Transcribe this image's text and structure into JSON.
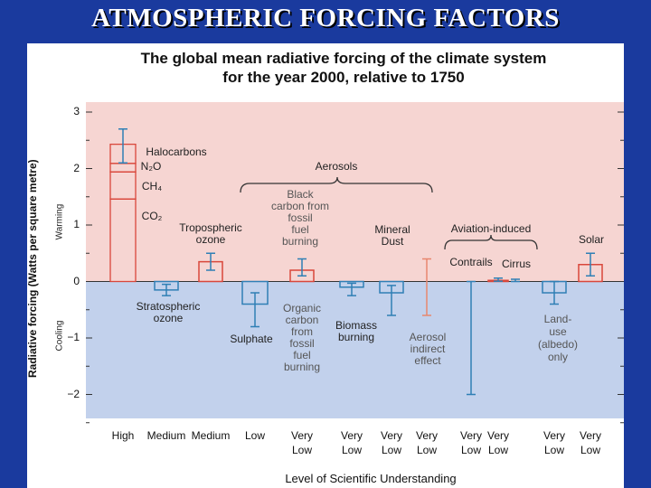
{
  "slide": {
    "title": "ATMOSPHERIC FORCING FACTORS"
  },
  "chart_data": {
    "type": "bar",
    "title": "The global mean radiative forcing of the climate system",
    "subtitle": "for the year 2000, relative to 1750",
    "ylabel": "Radiative forcing  (Watts per square metre)",
    "xlabel": "Level  of Scientific Understanding",
    "ylim": [
      -2.5,
      3.2
    ],
    "yticks": [
      3,
      2,
      1,
      0,
      -1,
      -2
    ],
    "region_labels": {
      "warming": "Warming",
      "cooling": "Cooling"
    },
    "colors": {
      "warming_bg": "#f6d5d2",
      "cooling_bg": "#c2d1ec",
      "positive": "#d9473b",
      "negative": "#2f7fb5",
      "uncertain": "#e8876f"
    },
    "group_labels": {
      "aerosols": "Aerosols",
      "aviation": "Aviation-induced"
    },
    "categories": [
      {
        "label": "Halocarbons|N₂O|CH₄|CO₂",
        "value": 2.43,
        "err_low": 2.1,
        "err_high": 2.7,
        "stack": [
          1.46,
          1.94,
          2.09,
          2.43
        ],
        "confidence": "High"
      },
      {
        "label": "Stratospheric|ozone",
        "value": -0.15,
        "err_low": -0.25,
        "err_high": -0.05,
        "confidence": "Medium"
      },
      {
        "label": "Tropospheric|ozone",
        "value": 0.35,
        "err_low": 0.2,
        "err_high": 0.5,
        "confidence": "Medium"
      },
      {
        "label": "Sulphate",
        "value": -0.4,
        "err_low": -0.8,
        "err_high": -0.2,
        "confidence": "Low"
      },
      {
        "label": "Black|carbon from|fossil|fuel|burning",
        "value": 0.2,
        "err_low": 0.1,
        "err_high": 0.4,
        "confidence": "Very Low"
      },
      {
        "label": "Organic|carbon|from|fossil|fuel|burning",
        "value": -0.1,
        "err_low": -0.25,
        "err_high": -0.03,
        "confidence": "Very Low"
      },
      {
        "label": "Biomass|burning",
        "value": -0.2,
        "err_low": -0.6,
        "err_high": -0.07,
        "confidence": "Very Low"
      },
      {
        "label": "Mineral|Dust",
        "value": null,
        "err_low": -0.6,
        "err_high": 0.4,
        "confidence": "Very Low"
      },
      {
        "label": "Aerosol|indirect|effect",
        "value": null,
        "err_low": -2.0,
        "err_high": 0,
        "confidence": "Very Low"
      },
      {
        "label": "Contrails",
        "value": 0.02,
        "err_low": 0.005,
        "err_high": 0.06,
        "confidence": "Very Low"
      },
      {
        "label": "Cirrus",
        "value": null,
        "err_low": 0,
        "err_high": 0.04,
        "confidence": "Very Low"
      },
      {
        "label": "Land-|use|(albedo)|only",
        "value": -0.2,
        "err_low": -0.4,
        "err_high": 0,
        "confidence": "Very Low"
      },
      {
        "label": "Solar",
        "value": 0.3,
        "err_low": 0.1,
        "err_high": 0.5,
        "confidence": "Very Low"
      }
    ]
  }
}
